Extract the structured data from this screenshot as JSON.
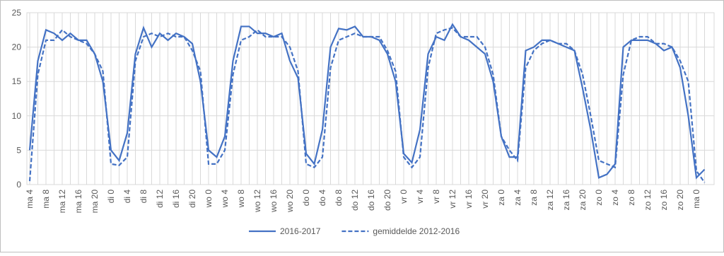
{
  "chart_data": {
    "type": "line",
    "categories": [
      "ma 4",
      null,
      "ma 8",
      null,
      "ma 12",
      null,
      "ma 16",
      null,
      "ma 20",
      null,
      "di 0",
      null,
      "di 4",
      null,
      "di 8",
      null,
      "di 12",
      null,
      "di 16",
      null,
      "di 20",
      null,
      "wo 0",
      null,
      "wo 4",
      null,
      "wo 8",
      null,
      "wo 12",
      null,
      "wo 16",
      null,
      "wo 20",
      null,
      "do 0",
      null,
      "do 4",
      null,
      "do 8",
      null,
      "do 12",
      null,
      "do 16",
      null,
      "do 20",
      null,
      "vr 0",
      null,
      "vr 4",
      null,
      "vr 8",
      null,
      "vr 12",
      null,
      "vr 16",
      null,
      "vr 20",
      null,
      "za 0",
      null,
      "za 4",
      null,
      "za 8",
      null,
      "za 12",
      null,
      "za 16",
      null,
      "za 20",
      null,
      "zo 0",
      null,
      "zo 4",
      null,
      "zo 8",
      null,
      "zo 12",
      null,
      "zo 16",
      null,
      "zo 20",
      null,
      "ma 0",
      null
    ],
    "series": [
      {
        "name": "2016-2017",
        "color": "#4472c4",
        "dash": false,
        "values": [
          5,
          18,
          22.5,
          22,
          21,
          22,
          21,
          21,
          19,
          15,
          5,
          3.5,
          7.5,
          19,
          22.8,
          20,
          22,
          21,
          22,
          21.5,
          20.5,
          15,
          5,
          4,
          7,
          18,
          23,
          23,
          22,
          22,
          21.5,
          22,
          18,
          15.5,
          4.5,
          3,
          8,
          20,
          22.7,
          22.5,
          23,
          21.5,
          21.5,
          21,
          19,
          15,
          4.5,
          3.2,
          8,
          19,
          21.5,
          21,
          23.3,
          21.5,
          21,
          20,
          19,
          15,
          7,
          4,
          4,
          19.5,
          20,
          21,
          21,
          20.5,
          20,
          19.5,
          14,
          8,
          1,
          1.5,
          3,
          20,
          21,
          21,
          21,
          20.5,
          19.5,
          20,
          17,
          10,
          1,
          2.2
        ]
      },
      {
        "name": "gemiddelde 2012-2016",
        "color": "#4472c4",
        "dash": true,
        "values": [
          0.5,
          16,
          21,
          21,
          22.5,
          21.5,
          21,
          20.5,
          19,
          16.5,
          3,
          2.8,
          4,
          18,
          21.5,
          22,
          21.5,
          22,
          21.5,
          21.5,
          19.5,
          16.5,
          3,
          3,
          5,
          16,
          21,
          21.5,
          22.5,
          21.5,
          21.5,
          21.5,
          20,
          16.5,
          3,
          2.5,
          4,
          17,
          21,
          21.5,
          22,
          21.5,
          21.5,
          21.5,
          19.5,
          16.5,
          4,
          2.5,
          4,
          17,
          22,
          22.5,
          22.8,
          21.5,
          21.5,
          21.5,
          20,
          16,
          7,
          5,
          3.5,
          17,
          19.5,
          20.5,
          21,
          20.5,
          20.5,
          19.5,
          16,
          10,
          3.5,
          3,
          2.5,
          16,
          21,
          21.5,
          21.5,
          20.5,
          20.5,
          20,
          18,
          15,
          2,
          0.3
        ]
      }
    ],
    "ylim": [
      0,
      25
    ],
    "yticks": [
      0,
      5,
      10,
      15,
      20,
      25
    ],
    "grid": true,
    "legend": "bottom"
  }
}
